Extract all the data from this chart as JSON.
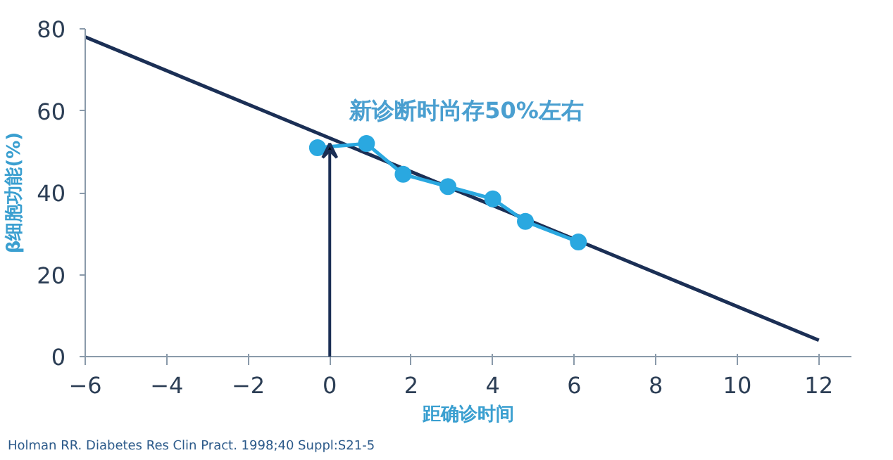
{
  "chart_data": {
    "type": "line",
    "xlabel": "距确诊时间",
    "ylabel": "β细胞功能(%)",
    "xlim": [
      -6,
      12.8
    ],
    "ylim": [
      0,
      80
    ],
    "xticks": [
      -6,
      -4,
      -2,
      0,
      2,
      4,
      6,
      8,
      10,
      12
    ],
    "yticks": [
      0,
      20,
      40,
      60,
      80
    ],
    "series": [
      {
        "color": "#1b2f55",
        "x": [
          -6,
          12
        ],
        "values": [
          78,
          4
        ],
        "marker": "none"
      },
      {
        "color": "#2aa8e0",
        "x": [
          -0.3,
          0.9,
          1.8,
          2.9,
          4.0,
          4.8,
          6.1
        ],
        "values": [
          51,
          52,
          44.5,
          41.5,
          38.5,
          33,
          28
        ],
        "marker": "circle"
      }
    ],
    "annotations": [
      {
        "text": "新诊断时尚存50%左右",
        "x": 0,
        "y": 52
      },
      "Holman RR.  Diabetes Res Clin Pract. 1998;40 Suppl:S21-5"
    ],
    "grid": false
  }
}
